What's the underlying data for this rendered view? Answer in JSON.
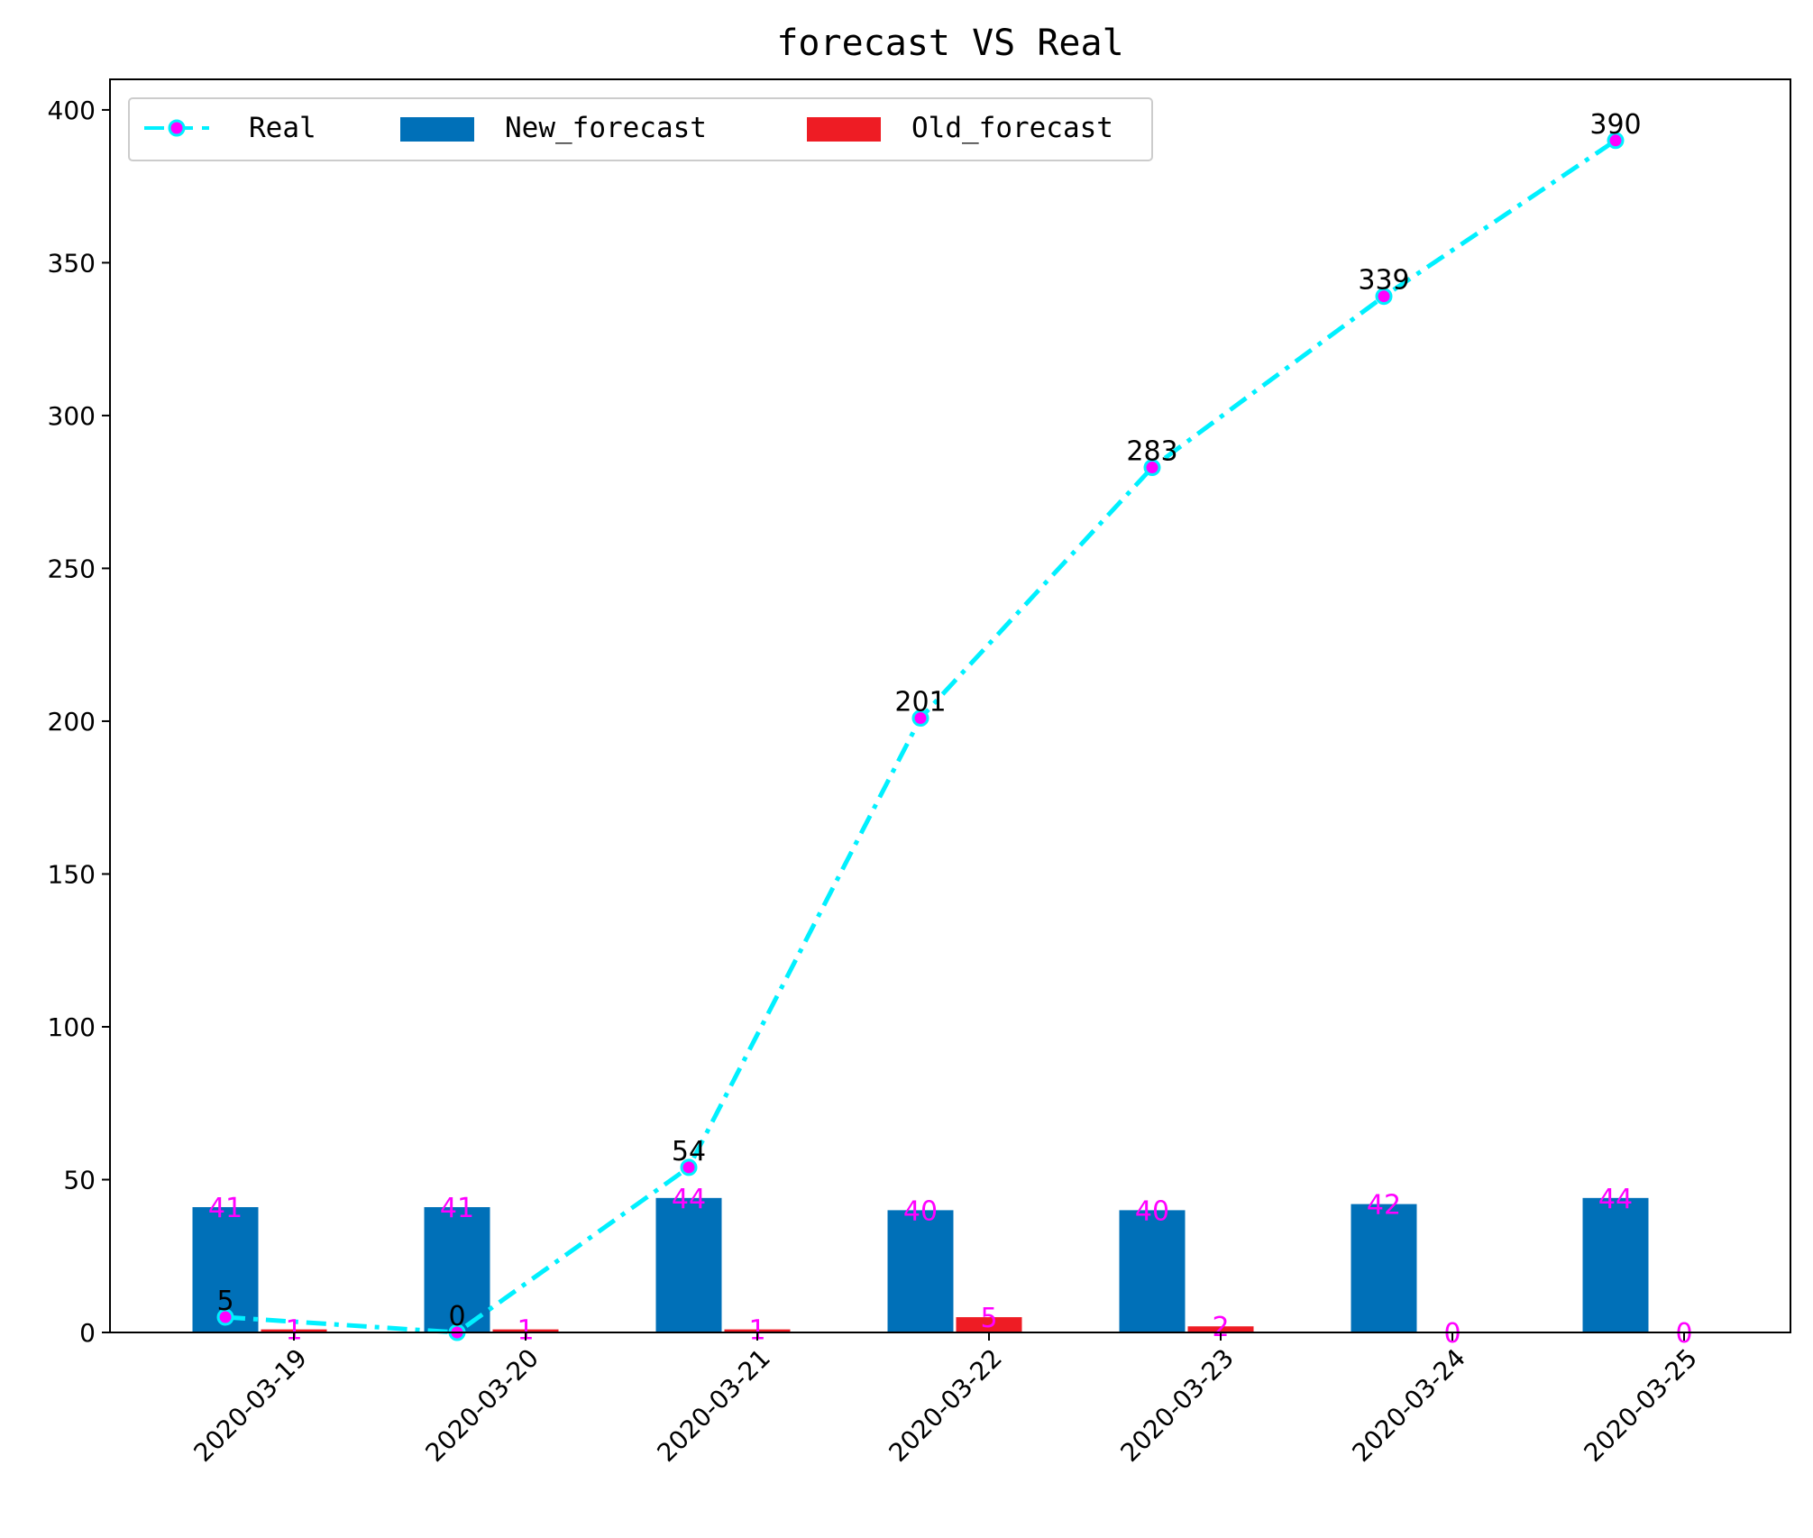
{
  "chart_data": {
    "type": "bar",
    "title": "forecast VS Real",
    "xlabel": "",
    "ylabel": "",
    "categories": [
      "2020-03-19",
      "2020-03-20",
      "2020-03-21",
      "2020-03-22",
      "2020-03-23",
      "2020-03-24",
      "2020-03-25"
    ],
    "ylim": [
      0,
      410
    ],
    "yticks": [
      "0",
      "50",
      "100",
      "150",
      "200",
      "250",
      "300",
      "350",
      "400"
    ],
    "legend": {
      "placement": "top-left",
      "columns": 3
    },
    "series": [
      {
        "name": "Real",
        "kind": "line",
        "line_style": "dashdot",
        "color": "#00f0ff",
        "marker_color": "#ff00ff",
        "values": [
          5,
          0,
          54,
          201,
          283,
          339,
          390
        ],
        "labels": [
          "5",
          "0",
          "54",
          "201",
          "283",
          "339",
          "390"
        ]
      },
      {
        "name": "New_forecast",
        "kind": "bar",
        "color": "#0070b8",
        "values": [
          41,
          41,
          44,
          40,
          40,
          42,
          44
        ],
        "labels": [
          "41",
          "41",
          "44",
          "40",
          "40",
          "42",
          "44"
        ]
      },
      {
        "name": "Old_forecast",
        "kind": "bar",
        "color": "#ee1c24",
        "values": [
          1,
          1,
          1,
          5,
          2,
          0,
          0
        ],
        "labels": [
          "1",
          "1",
          "1",
          "5",
          "2",
          "0",
          "0"
        ]
      }
    ],
    "bar_label_color": "#ff00ff",
    "line_label_color": "#000000",
    "grid": false
  }
}
